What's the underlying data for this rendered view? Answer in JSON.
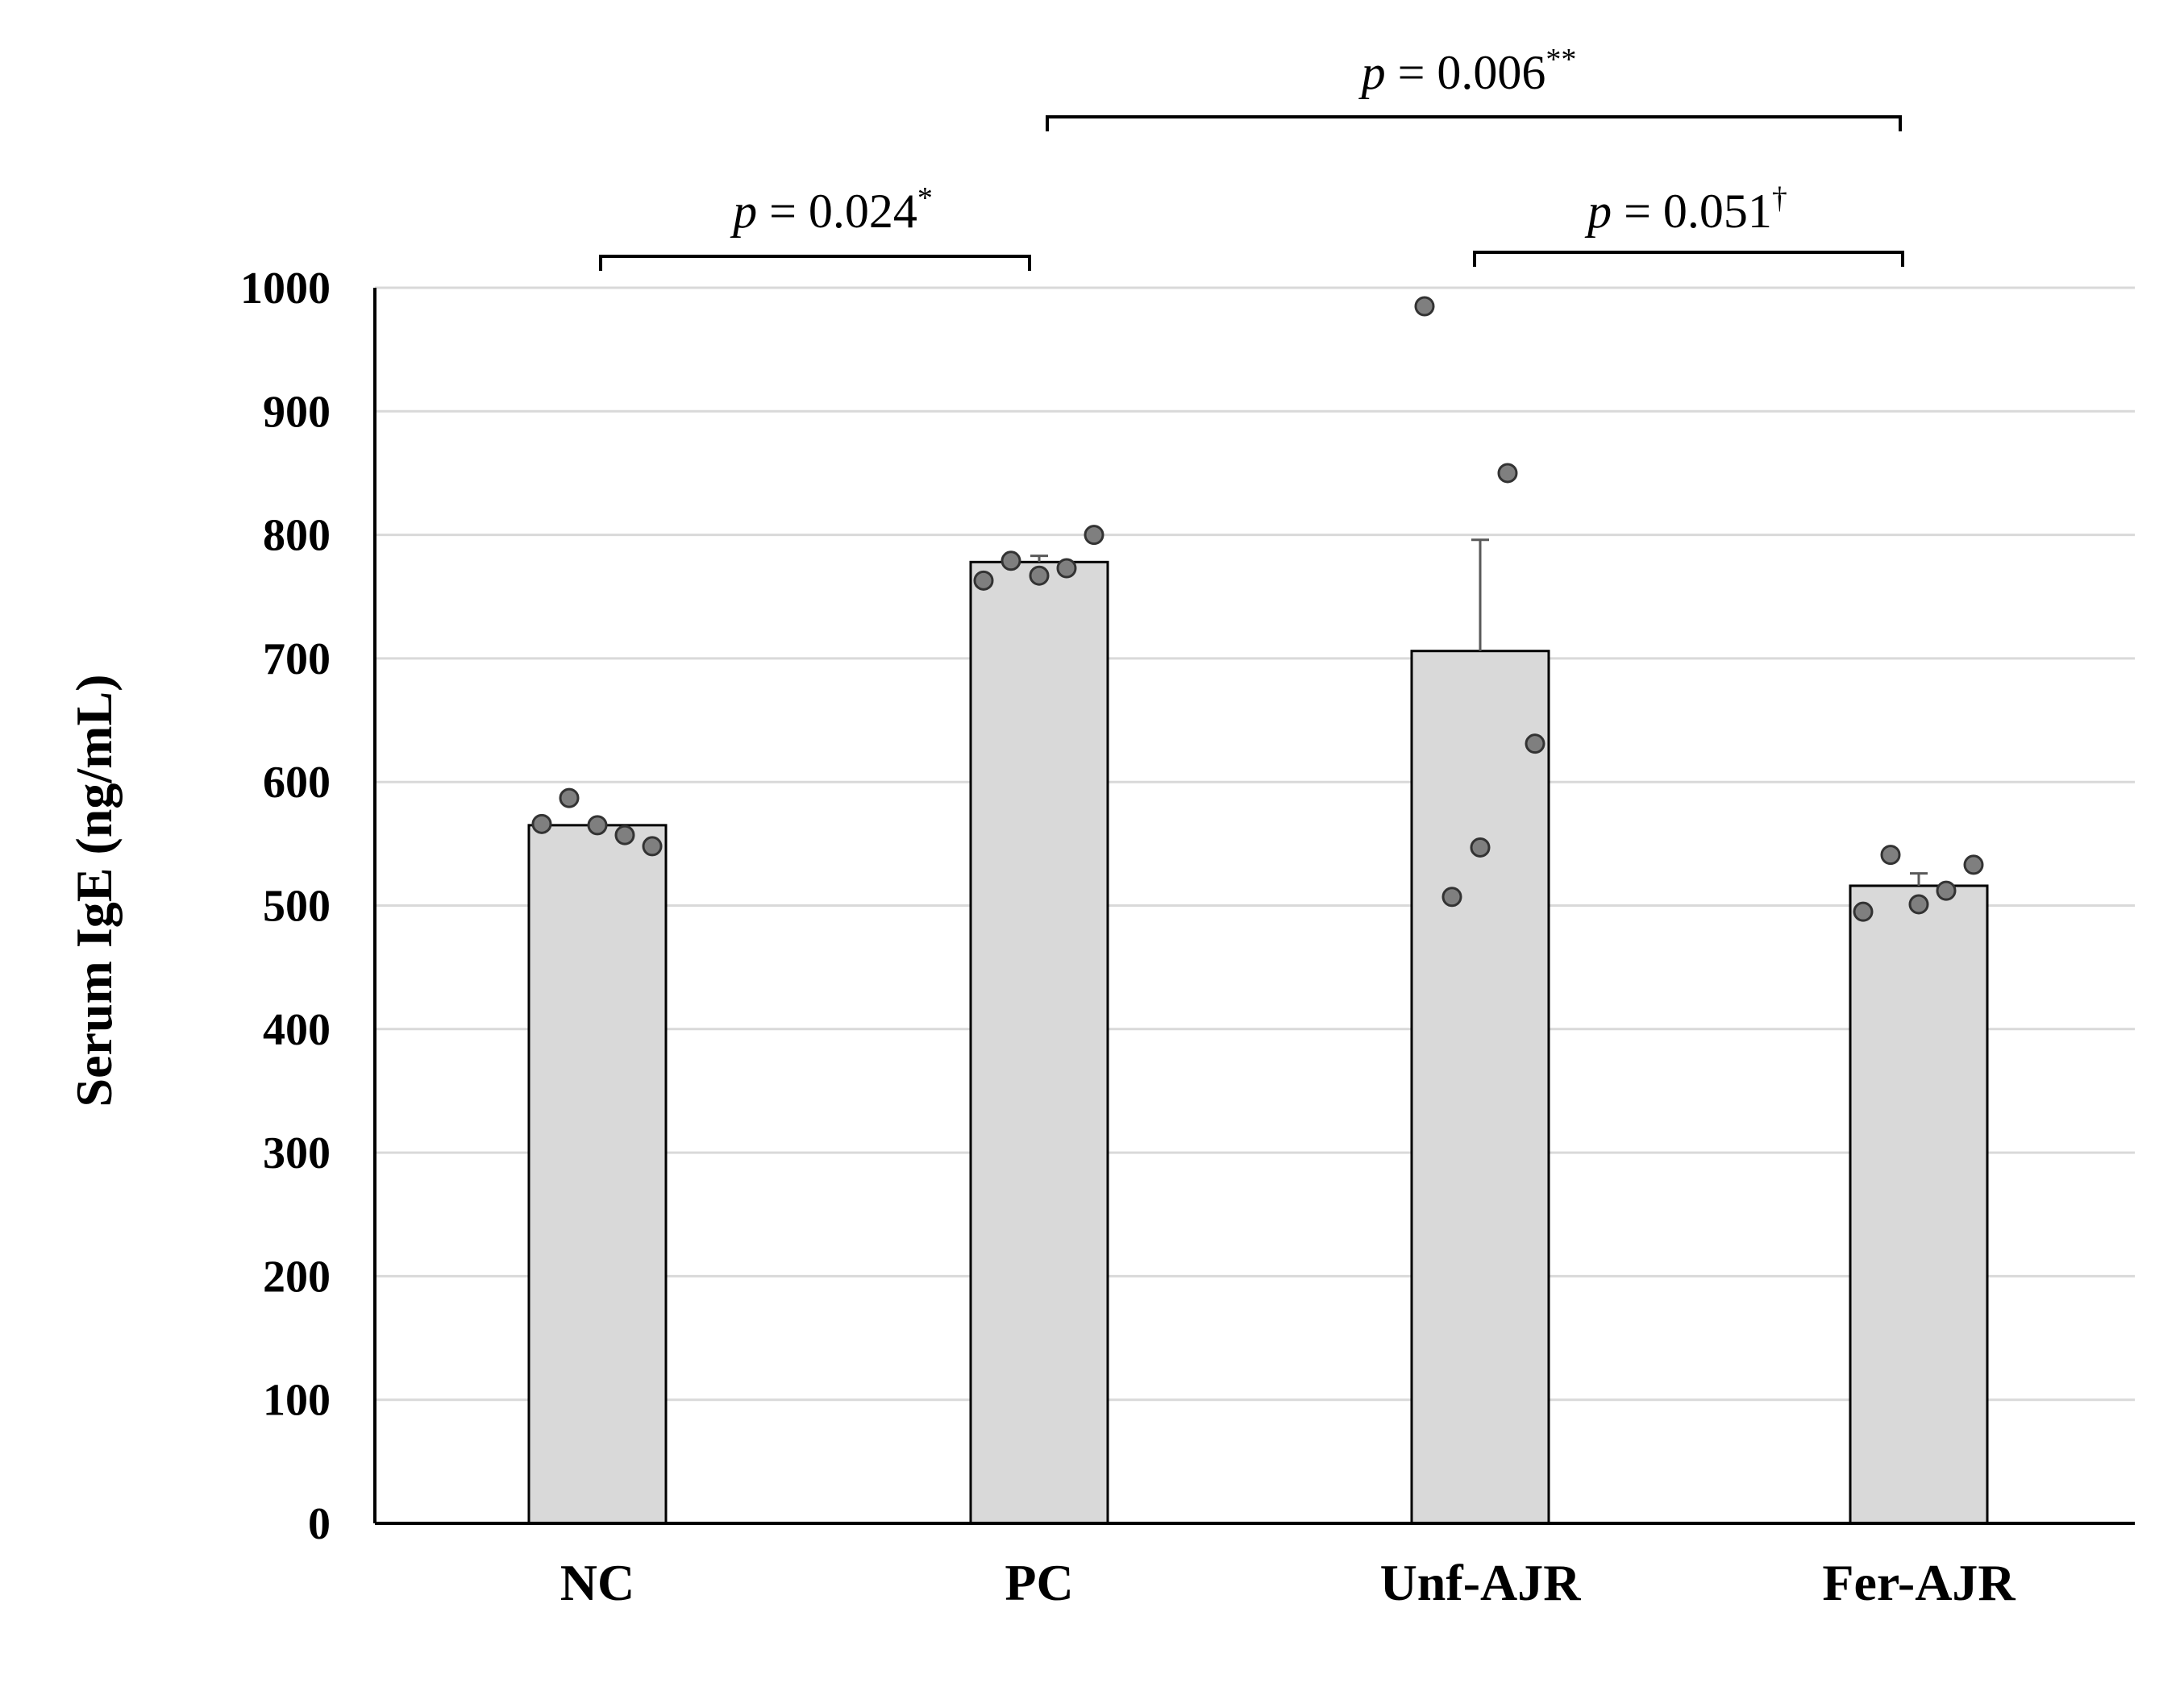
{
  "chart_data": {
    "type": "bar",
    "title": "",
    "xlabel": "",
    "ylabel": "Serum IgE (ng/mL)",
    "ylim": [
      0,
      1000
    ],
    "yticks": [
      0,
      100,
      200,
      300,
      400,
      500,
      600,
      700,
      800,
      900,
      1000
    ],
    "grid": true,
    "categories": [
      "NC",
      "PC",
      "Unf-AJR",
      "Fer-AJR"
    ],
    "values": [
      565,
      778,
      706,
      516
    ],
    "error_bars": [
      3,
      5,
      90,
      10
    ],
    "points": [
      [
        566,
        587,
        565,
        557,
        548
      ],
      [
        763,
        779,
        767,
        773,
        800
      ],
      [
        985,
        507,
        547,
        850,
        631
      ],
      [
        495,
        541,
        501,
        512,
        533
      ]
    ],
    "colors": {
      "bar_fill": "#d9d9d9",
      "bar_edge": "#000000",
      "point_fill": "#7f7f7f",
      "point_edge": "#333333",
      "grid": "#d9d9d9"
    },
    "significance": [
      {
        "from": "NC",
        "to": "PC",
        "label": "p = 0.024",
        "italic": "p",
        "rest": " = 0.024",
        "mark": "*"
      },
      {
        "from": "PC",
        "to": "Fer-AJR",
        "label": "p = 0.006",
        "italic": "p",
        "rest": " = 0.006",
        "mark": "**"
      },
      {
        "from": "Unf-AJR",
        "to": "Fer-AJR",
        "label": "p = 0.051",
        "italic": "p",
        "rest": " = 0.051",
        "mark": "†"
      }
    ]
  }
}
